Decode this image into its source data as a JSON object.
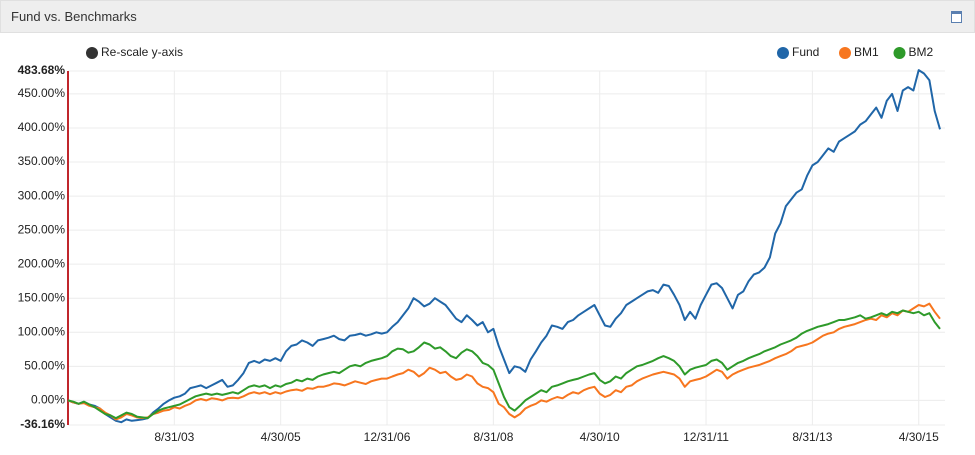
{
  "title": "Fund vs. Benchmarks",
  "rescale_label": "Re-scale y-axis",
  "chart_data": {
    "type": "line",
    "categories": [
      null,
      null,
      null,
      null,
      null,
      null,
      null,
      null,
      null,
      null,
      null,
      null,
      null,
      null,
      null,
      null,
      null,
      null,
      null,
      null,
      "8/31/03",
      null,
      null,
      null,
      null,
      null,
      null,
      null,
      null,
      null,
      null,
      null,
      null,
      null,
      null,
      null,
      null,
      null,
      null,
      null,
      "4/30/05",
      null,
      null,
      null,
      null,
      null,
      null,
      null,
      null,
      null,
      null,
      null,
      null,
      null,
      null,
      null,
      null,
      null,
      null,
      null,
      "12/31/06",
      null,
      null,
      null,
      null,
      null,
      null,
      null,
      null,
      null,
      null,
      null,
      null,
      null,
      null,
      null,
      null,
      null,
      null,
      null,
      "8/31/08",
      null,
      null,
      null,
      null,
      null,
      null,
      null,
      null,
      null,
      null,
      null,
      null,
      null,
      null,
      null,
      null,
      null,
      null,
      null,
      "4/30/10",
      null,
      null,
      null,
      null,
      null,
      null,
      null,
      null,
      null,
      null,
      null,
      null,
      null,
      null,
      null,
      null,
      null,
      null,
      null,
      "12/31/11",
      null,
      null,
      null,
      null,
      null,
      null,
      null,
      null,
      null,
      null,
      null,
      null,
      null,
      null,
      null,
      null,
      null,
      null,
      null,
      "8/31/13",
      null,
      null,
      null,
      null,
      null,
      null,
      null,
      null,
      null,
      null,
      null,
      null,
      null,
      null,
      null,
      null,
      null,
      null,
      null,
      "4/30/15",
      null,
      null,
      null,
      null
    ],
    "series": [
      {
        "name": "Fund",
        "color": "#2066a8",
        "values": [
          0,
          -3,
          -5,
          -2,
          -6,
          -8,
          -12,
          -20,
          -25,
          -30,
          -32,
          -28,
          -30,
          -29,
          -28,
          -26,
          -18,
          -12,
          -5,
          0,
          4,
          6,
          10,
          18,
          20,
          22,
          18,
          22,
          26,
          30,
          20,
          22,
          30,
          40,
          55,
          58,
          55,
          60,
          58,
          62,
          58,
          72,
          80,
          82,
          88,
          85,
          80,
          88,
          90,
          92,
          95,
          90,
          88,
          95,
          96,
          98,
          95,
          97,
          100,
          98,
          100,
          108,
          115,
          125,
          135,
          150,
          145,
          138,
          142,
          150,
          145,
          140,
          130,
          120,
          115,
          125,
          118,
          110,
          115,
          100,
          105,
          80,
          60,
          40,
          50,
          48,
          42,
          60,
          72,
          85,
          95,
          110,
          108,
          105,
          115,
          118,
          125,
          130,
          135,
          140,
          125,
          110,
          108,
          120,
          128,
          140,
          145,
          150,
          155,
          160,
          162,
          158,
          170,
          168,
          155,
          140,
          118,
          130,
          120,
          140,
          155,
          170,
          172,
          165,
          150,
          135,
          155,
          160,
          175,
          185,
          188,
          195,
          210,
          245,
          260,
          285,
          295,
          305,
          310,
          330,
          345,
          350,
          360,
          370,
          365,
          380,
          385,
          390,
          395,
          405,
          410,
          420,
          430,
          415,
          440,
          450,
          425,
          455,
          460,
          455,
          485,
          480,
          470,
          425,
          398
        ]
      },
      {
        "name": "BM1",
        "color": "#f7761f",
        "values": [
          0,
          -3,
          -5,
          -4,
          -8,
          -10,
          -12,
          -18,
          -22,
          -28,
          -25,
          -20,
          -22,
          -25,
          -26,
          -25,
          -20,
          -18,
          -15,
          -14,
          -10,
          -12,
          -8,
          -5,
          0,
          2,
          0,
          3,
          2,
          0,
          3,
          4,
          3,
          6,
          10,
          12,
          10,
          12,
          9,
          12,
          10,
          13,
          15,
          16,
          14,
          18,
          17,
          20,
          20,
          22,
          25,
          24,
          22,
          25,
          28,
          26,
          24,
          28,
          30,
          32,
          32,
          35,
          38,
          40,
          45,
          42,
          35,
          40,
          48,
          45,
          40,
          42,
          35,
          30,
          32,
          38,
          35,
          25,
          20,
          18,
          12,
          -5,
          -10,
          -20,
          -25,
          -20,
          -12,
          -8,
          -5,
          0,
          -2,
          2,
          5,
          3,
          8,
          12,
          10,
          15,
          18,
          20,
          10,
          5,
          8,
          15,
          12,
          20,
          22,
          28,
          32,
          35,
          38,
          40,
          42,
          40,
          38,
          32,
          20,
          28,
          30,
          32,
          35,
          40,
          45,
          42,
          32,
          38,
          42,
          45,
          48,
          50,
          52,
          55,
          58,
          62,
          65,
          68,
          72,
          78,
          80,
          82,
          85,
          90,
          95,
          98,
          100,
          105,
          108,
          110,
          112,
          115,
          118,
          120,
          118,
          125,
          122,
          128,
          125,
          132,
          130,
          135,
          140,
          138,
          142,
          130,
          120
        ]
      },
      {
        "name": "BM2",
        "color": "#2e9a2a",
        "values": [
          0,
          -2,
          -5,
          -2,
          -6,
          -10,
          -15,
          -20,
          -22,
          -26,
          -22,
          -18,
          -20,
          -24,
          -25,
          -26,
          -20,
          -15,
          -12,
          -10,
          -8,
          -6,
          -2,
          2,
          6,
          8,
          10,
          8,
          10,
          8,
          10,
          12,
          10,
          15,
          20,
          22,
          20,
          22,
          18,
          22,
          20,
          24,
          26,
          30,
          28,
          32,
          30,
          35,
          38,
          40,
          42,
          40,
          45,
          50,
          52,
          50,
          55,
          58,
          60,
          62,
          65,
          72,
          76,
          75,
          70,
          72,
          78,
          85,
          82,
          76,
          78,
          72,
          65,
          62,
          70,
          75,
          72,
          65,
          55,
          52,
          45,
          25,
          5,
          -10,
          -15,
          -8,
          0,
          5,
          10,
          15,
          12,
          20,
          22,
          25,
          28,
          30,
          32,
          35,
          38,
          40,
          30,
          25,
          28,
          35,
          32,
          40,
          45,
          50,
          52,
          55,
          58,
          62,
          65,
          62,
          58,
          50,
          38,
          45,
          48,
          50,
          52,
          58,
          60,
          55,
          45,
          50,
          55,
          58,
          62,
          65,
          68,
          72,
          75,
          78,
          82,
          85,
          88,
          92,
          98,
          102,
          105,
          108,
          110,
          112,
          115,
          118,
          118,
          120,
          122,
          125,
          120,
          122,
          125,
          128,
          125,
          130,
          128,
          132,
          130,
          128,
          130,
          125,
          128,
          115,
          105
        ]
      }
    ],
    "ylim": [
      -36.16,
      483.68
    ],
    "yticks": [
      {
        "value": -36.16,
        "label": "-36.16%"
      },
      {
        "value": 0,
        "label": "0.00%"
      },
      {
        "value": 50,
        "label": "50.00%"
      },
      {
        "value": 100,
        "label": "100.00%"
      },
      {
        "value": 150,
        "label": "150.00%"
      },
      {
        "value": 200,
        "label": "200.00%"
      },
      {
        "value": 250,
        "label": "250.00%"
      },
      {
        "value": 300,
        "label": "300.00%"
      },
      {
        "value": 350,
        "label": "350.00%"
      },
      {
        "value": 400,
        "label": "400.00%"
      },
      {
        "value": 450,
        "label": "450.00%"
      },
      {
        "value": 483.68,
        "label": "483.68%"
      }
    ],
    "grid": true,
    "legend": "top-right",
    "axis_color": "#c0262c"
  }
}
